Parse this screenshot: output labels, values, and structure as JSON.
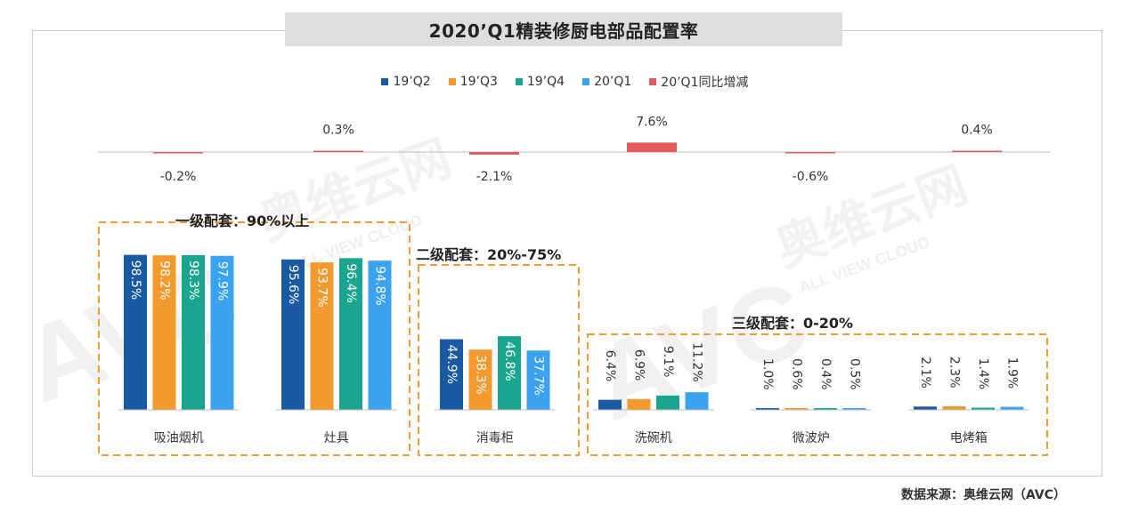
{
  "title": "2020’Q1精装修厨电部品配置率",
  "source": "数据来源：奥维云网（AVC）",
  "watermark": {
    "brand": "奥维云网",
    "tagline": "ALL VIEW CLOUD",
    "logo": "AVC"
  },
  "tiers": [
    {
      "label": "一级配套：90%以上"
    },
    {
      "label": "二级配套：20%-75%"
    },
    {
      "label": "三级配套：0-20%"
    }
  ],
  "colors": {
    "19Q2": "#1a5aa3",
    "19Q3": "#f29a2e",
    "19Q4": "#1aa58f",
    "20Q1": "#3aa2ee",
    "change": "#e25b5b",
    "dash": "#e8a035"
  },
  "chart_data": {
    "type": "bar",
    "categories": [
      "吸油烟机",
      "灶具",
      "消毒柜",
      "洗碗机",
      "微波炉",
      "电烤箱"
    ],
    "series": [
      {
        "name": "19’Q2",
        "values": [
          98.5,
          95.6,
          44.9,
          6.4,
          1.0,
          2.1
        ],
        "labels": [
          "98.5%",
          "95.6%",
          "44.9%",
          "6.4%",
          "1.0%",
          "2.1%"
        ]
      },
      {
        "name": "19’Q3",
        "values": [
          98.2,
          93.7,
          38.3,
          6.9,
          0.6,
          2.3
        ],
        "labels": [
          "98.2%",
          "93.7%",
          "38.3%",
          "6.9%",
          "0.6%",
          "2.3%"
        ]
      },
      {
        "name": "19’Q4",
        "values": [
          98.3,
          96.4,
          46.8,
          9.1,
          0.4,
          1.4
        ],
        "labels": [
          "98.3%",
          "96.4%",
          "46.8%",
          "9.1%",
          "0.4%",
          "1.4%"
        ]
      },
      {
        "name": "20’Q1",
        "values": [
          97.9,
          94.8,
          37.7,
          11.2,
          0.5,
          1.9
        ],
        "labels": [
          "97.9%",
          "94.8%",
          "37.7%",
          "11.2%",
          "0.5%",
          "1.9%"
        ]
      }
    ],
    "change": {
      "name": "20’Q1同比增减",
      "values": [
        -0.2,
        0.3,
        -2.1,
        7.6,
        -0.6,
        0.4
      ],
      "labels": [
        "-0.2%",
        "0.3%",
        "-2.1%",
        "7.6%",
        "-0.6%",
        "0.4%"
      ]
    },
    "ylim": [
      0,
      100
    ],
    "legend_position": "top-center"
  }
}
